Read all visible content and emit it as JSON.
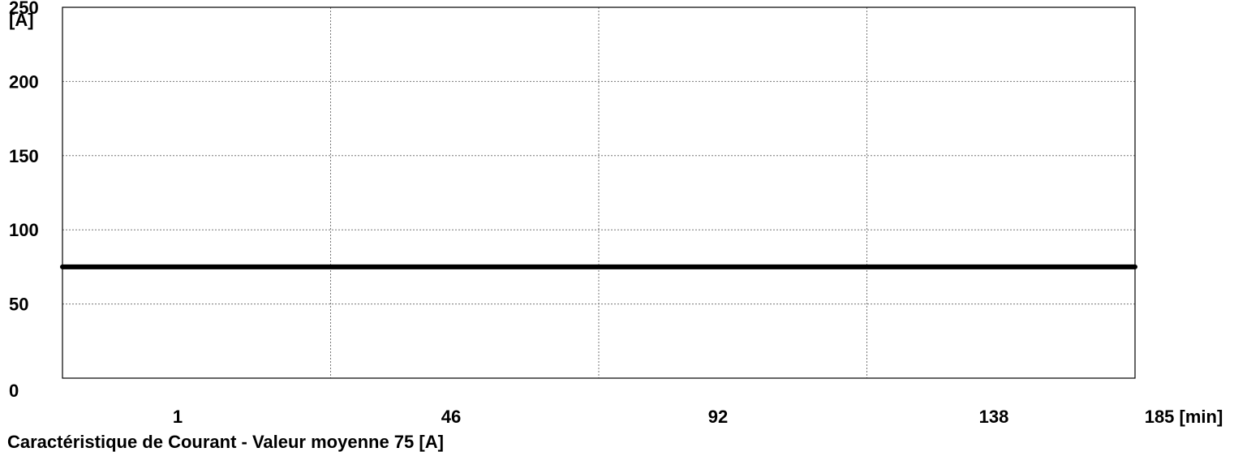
{
  "chart_data": {
    "type": "line",
    "title": "Caractéristique de  Courant - Valeur moyenne 75 [A]",
    "y_unit_label": "[A]",
    "ylim": [
      0,
      250
    ],
    "y_ticks": [
      0,
      50,
      100,
      150,
      200,
      250
    ],
    "y_tick_labels": [
      "0",
      "50",
      "100",
      "150",
      "200",
      "250"
    ],
    "x_tick_labels": [
      "1",
      "46",
      "92",
      "138",
      "185 [min]"
    ],
    "xlim": [
      1,
      185
    ],
    "grid": true,
    "series": [
      {
        "x": [
          1,
          185
        ],
        "y": [
          75,
          75
        ],
        "color": "#000000"
      }
    ]
  }
}
